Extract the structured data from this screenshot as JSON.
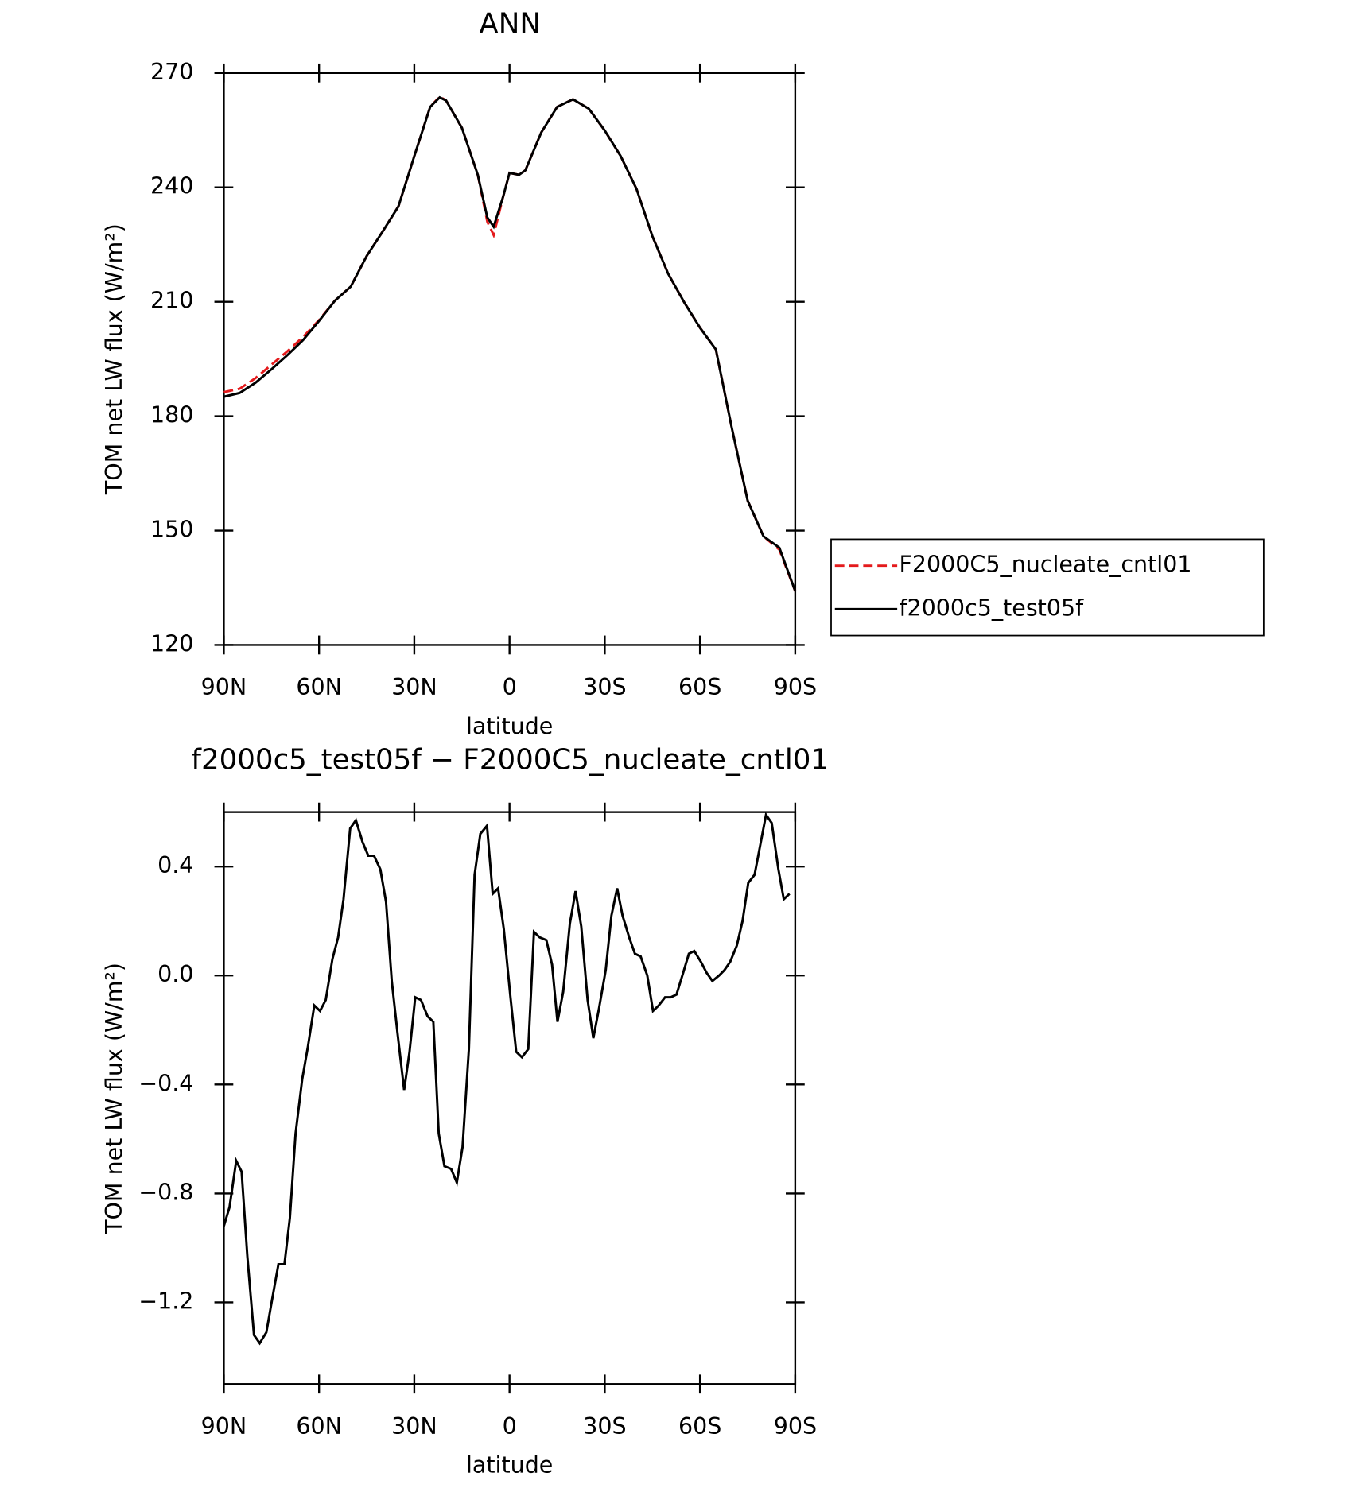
{
  "chart_data": [
    {
      "type": "line",
      "title": "ANN",
      "xlabel": "latitude",
      "ylabel": "TOM net LW flux (W/m²)",
      "x": [
        90,
        85,
        80,
        75,
        70,
        65,
        60,
        55,
        50,
        45,
        40,
        35,
        30,
        25,
        22,
        20,
        15,
        10,
        7,
        5,
        2,
        0,
        -3,
        -5,
        -10,
        -15,
        -20,
        -25,
        -30,
        -35,
        -40,
        -45,
        -50,
        -55,
        -60,
        -65,
        -70,
        -75,
        -80,
        -85,
        -90
      ],
      "series": [
        {
          "name": "F2000C5_nucleate_cntl01",
          "color": "#e41a1c",
          "dash": true,
          "values": [
            186.3,
            187.2,
            190.0,
            193.5,
            197.0,
            200.8,
            205.2,
            210.3,
            214.0,
            222.0,
            228.4,
            235.0,
            248.2,
            261.1,
            263.8,
            262.8,
            255.6,
            243.3,
            231.0,
            227.5,
            237.6,
            243.8,
            243.3,
            244.5,
            254.4,
            261.1,
            263.1,
            260.6,
            254.9,
            248.2,
            239.6,
            227.2,
            217.3,
            209.9,
            203.2,
            197.5,
            177.0,
            157.9,
            148.5,
            145.0,
            134.1
          ]
        },
        {
          "name": "f2000c5_test05f",
          "color": "#000000",
          "values": [
            185.1,
            186.1,
            188.8,
            192.3,
            196.0,
            200.0,
            205.0,
            210.3,
            214.0,
            222.0,
            228.4,
            235.0,
            248.2,
            261.1,
            263.6,
            262.8,
            255.6,
            243.3,
            232.1,
            229.7,
            237.6,
            243.8,
            243.3,
            244.5,
            254.4,
            261.1,
            263.1,
            260.6,
            254.9,
            248.2,
            239.6,
            227.2,
            217.3,
            209.9,
            203.2,
            197.5,
            177.0,
            157.9,
            148.5,
            145.5,
            134.1
          ]
        }
      ],
      "xlim": [
        90,
        -90
      ],
      "xticks": [
        {
          "value": 90,
          "label": "90N"
        },
        {
          "value": 60,
          "label": "60N"
        },
        {
          "value": 30,
          "label": "30N"
        },
        0,
        {
          "value": -30,
          "label": "30S"
        },
        {
          "value": -60,
          "label": "60S"
        },
        {
          "value": -90,
          "label": "90S"
        }
      ],
      "ylim": [
        120,
        270
      ],
      "yticks": [
        120,
        150,
        180,
        210,
        240,
        270
      ],
      "legend": "right"
    },
    {
      "type": "line",
      "title": "f2000c5_test05f − F2000C5_nucleate_cntl01",
      "xlabel": "latitude",
      "ylabel": "TOM net LW flux (W/m²)",
      "x": [
        90,
        88.2,
        86.1,
        84.4,
        82.6,
        80.5,
        78.7,
        76.6,
        74.8,
        72.8,
        70.9,
        69.2,
        67.4,
        65.3,
        63.5,
        61.5,
        59.7,
        57.9,
        55.8,
        54.0,
        52.3,
        50.2,
        48.4,
        46.3,
        44.5,
        42.7,
        40.7,
        38.9,
        37.1,
        35.3,
        33.2,
        31.5,
        29.7,
        27.9,
        25.8,
        24.0,
        22.3,
        20.5,
        18.4,
        16.6,
        14.8,
        12.8,
        11.0,
        9.2,
        7.1,
        5.3,
        3.6,
        1.8,
        -0.3,
        -2.1,
        -3.9,
        -5.9,
        -7.7,
        -9.5,
        -11.6,
        -13.4,
        -15.1,
        -16.9,
        -19.0,
        -20.8,
        -22.6,
        -24.6,
        -26.4,
        -28.2,
        -30.3,
        -32.1,
        -33.9,
        -35.6,
        -37.7,
        -39.5,
        -41.3,
        -43.4,
        -45.2,
        -47.0,
        -49.0,
        -50.8,
        -52.6,
        -54.7,
        -56.5,
        -58.2,
        -60.3,
        -62.1,
        -63.9,
        -66.0,
        -67.7,
        -69.5,
        -71.6,
        -73.4,
        -75.2,
        -77.2,
        -79.0,
        -80.8,
        -82.6,
        -84.7,
        -86.4,
        -88.2
      ],
      "series": [
        {
          "color": "#000000",
          "values": [
            -0.92,
            -0.85,
            -0.68,
            -0.72,
            -1.03,
            -1.32,
            -1.35,
            -1.31,
            -1.19,
            -1.06,
            -1.06,
            -0.89,
            -0.58,
            -0.38,
            -0.26,
            -0.11,
            -0.13,
            -0.09,
            0.06,
            0.14,
            0.28,
            0.54,
            0.57,
            0.49,
            0.44,
            0.44,
            0.39,
            0.27,
            -0.02,
            -0.21,
            -0.42,
            -0.28,
            -0.08,
            -0.09,
            -0.15,
            -0.17,
            -0.58,
            -0.7,
            -0.71,
            -0.76,
            -0.63,
            -0.27,
            0.37,
            0.52,
            0.55,
            0.3,
            0.32,
            0.17,
            -0.08,
            -0.28,
            -0.3,
            -0.27,
            0.16,
            0.14,
            0.13,
            0.04,
            -0.17,
            -0.06,
            0.19,
            0.31,
            0.18,
            -0.09,
            -0.23,
            -0.12,
            0.02,
            0.22,
            0.32,
            0.22,
            0.14,
            0.08,
            0.07,
            0.0,
            -0.13,
            -0.11,
            -0.08,
            -0.08,
            -0.07,
            0.01,
            0.08,
            0.09,
            0.05,
            0.01,
            -0.02,
            0.0,
            0.02,
            0.05,
            0.11,
            0.2,
            0.34,
            0.37,
            0.48,
            0.59,
            0.56,
            0.39,
            0.28,
            0.3
          ]
        }
      ],
      "xlim": [
        90,
        -90
      ],
      "xticks": [
        {
          "value": 90,
          "label": "90N"
        },
        {
          "value": 60,
          "label": "60N"
        },
        {
          "value": 30,
          "label": "30N"
        },
        0,
        {
          "value": -30,
          "label": "30S"
        },
        {
          "value": -60,
          "label": "60S"
        },
        {
          "value": -90,
          "label": "90S"
        }
      ],
      "ylim": [
        -1.5,
        0.6
      ],
      "yticks": [
        {
          "value": -1.2,
          "label": "−1.2"
        },
        {
          "value": -0.8,
          "label": "−0.8"
        },
        {
          "value": -0.4,
          "label": "−0.4"
        },
        {
          "value": 0,
          "label": "0.0"
        },
        0.4
      ]
    }
  ]
}
